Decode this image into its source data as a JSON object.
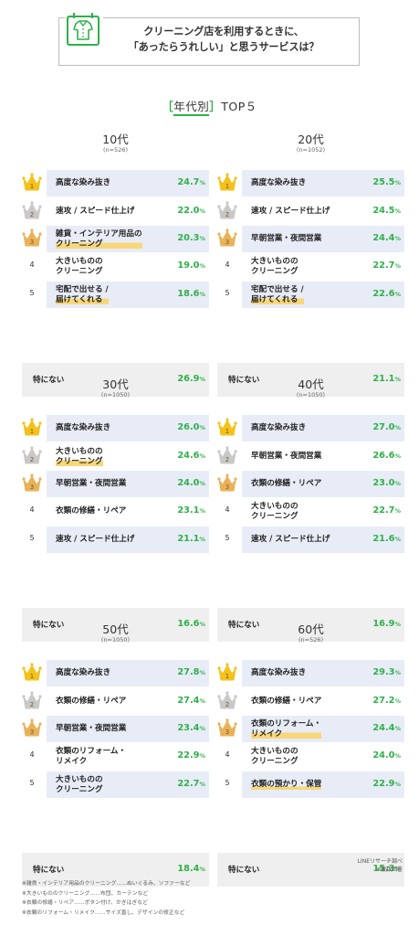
{
  "header": {
    "title_line1": "クリーニング店を利用するときに、",
    "title_line2": "「あったらうれしい」と思うサービスは？",
    "icon": "shirt-icon"
  },
  "section": {
    "bracket_open": "［",
    "label": "年代別",
    "bracket_close": "］",
    "suffix": "TOP５"
  },
  "colors": {
    "accent": "#2fb14a",
    "highlight_row": "#e8ecf7",
    "none_row": "#efefef",
    "gold": "#f4c21b",
    "silver": "#c8c8c8",
    "bronze": "#e9b25a",
    "underline": "#f7d77a"
  },
  "chart_data": [
    {
      "type": "table",
      "age": "10代",
      "n": "(n=526)",
      "rows": [
        {
          "rank": "1",
          "label": "高度な染み抜き",
          "value": 24.7
        },
        {
          "rank": "2",
          "label": "速攻 / スピード仕上げ",
          "value": 22.0
        },
        {
          "rank": "3",
          "label": "雑貨・インテリア用品の\nクリーニング",
          "value": 20.3,
          "note": true
        },
        {
          "rank": "4",
          "label": "大きいものの\nクリーニング",
          "value": 19.0
        },
        {
          "rank": "5",
          "label": "宅配で出せる /\n届けてくれる",
          "value": 18.6,
          "note": true
        }
      ],
      "none": {
        "label": "特にない",
        "value": 26.9
      }
    },
    {
      "type": "table",
      "age": "20代",
      "n": "(n=1052)",
      "rows": [
        {
          "rank": "1",
          "label": "高度な染み抜き",
          "value": 25.5
        },
        {
          "rank": "2",
          "label": "速攻 / スピード仕上げ",
          "value": 24.5
        },
        {
          "rank": "3",
          "label": "早朝営業・夜間営業",
          "value": 24.4
        },
        {
          "rank": "4",
          "label": "大きいものの\nクリーニング",
          "value": 22.7
        },
        {
          "rank": "5",
          "label": "宅配で出せる /\n届けてくれる",
          "value": 22.6,
          "note": true
        }
      ],
      "none": {
        "label": "特にない",
        "value": 21.1
      }
    },
    {
      "type": "table",
      "age": "30代",
      "n": "(n=1050)",
      "rows": [
        {
          "rank": "1",
          "label": "高度な染み抜き",
          "value": 26.0
        },
        {
          "rank": "2",
          "label": "大きいものの\nクリーニング",
          "value": 24.6,
          "note": true
        },
        {
          "rank": "3",
          "label": "早朝営業・夜間営業",
          "value": 24.0
        },
        {
          "rank": "4",
          "label": "衣類の修繕・リペア",
          "value": 23.1
        },
        {
          "rank": "5",
          "label": "速攻 / スピード仕上げ",
          "value": 21.1
        }
      ],
      "none": {
        "label": "特にない",
        "value": 16.6
      }
    },
    {
      "type": "table",
      "age": "40代",
      "n": "(n=1050)",
      "rows": [
        {
          "rank": "1",
          "label": "高度な染み抜き",
          "value": 27.0
        },
        {
          "rank": "2",
          "label": "早朝営業・夜間営業",
          "value": 26.6
        },
        {
          "rank": "3",
          "label": "衣類の修繕・リペア",
          "value": 23.0
        },
        {
          "rank": "4",
          "label": "大きいものの\nクリーニング",
          "value": 22.7
        },
        {
          "rank": "5",
          "label": "速攻 / スピード仕上げ",
          "value": 21.6
        }
      ],
      "none": {
        "label": "特にない",
        "value": 16.9
      }
    },
    {
      "type": "table",
      "age": "50代",
      "n": "(n=1050)",
      "rows": [
        {
          "rank": "1",
          "label": "高度な染み抜き",
          "value": 27.8
        },
        {
          "rank": "2",
          "label": "衣類の修繕・リペア",
          "value": 27.4
        },
        {
          "rank": "3",
          "label": "早朝営業・夜間営業",
          "value": 23.4
        },
        {
          "rank": "4",
          "label": "衣類のリフォーム・\nリメイク",
          "value": 22.9
        },
        {
          "rank": "5",
          "label": "大きいものの\nクリーニング",
          "value": 22.7
        }
      ],
      "none": {
        "label": "特にない",
        "value": 18.4
      }
    },
    {
      "type": "table",
      "age": "60代",
      "n": "(n=526)",
      "rows": [
        {
          "rank": "1",
          "label": "高度な染み抜き",
          "value": 29.3
        },
        {
          "rank": "2",
          "label": "衣類の修繕・リペア",
          "value": 27.2
        },
        {
          "rank": "3",
          "label": "衣類のリフォーム・\nリメイク",
          "value": 24.4,
          "note": true
        },
        {
          "rank": "4",
          "label": "大きいものの\nクリーニング",
          "value": 24.0
        },
        {
          "rank": "5",
          "label": "衣類の預かり・保管",
          "value": 22.9,
          "note": true
        }
      ],
      "none": {
        "label": "特にない",
        "value": 15.3
      }
    }
  ],
  "percent_unit": "%",
  "source": {
    "line1": "LINEリサーチ調べ",
    "line2": "※複数回答"
  },
  "notes": [
    "※雑貨・インテリア用品のクリーニング……ぬいぐるみ、ソファーなど",
    "※大きいもののクリーニング……布団、カーテンなど",
    "※衣類の修繕・リペア……ボタン付け、かぎはぎなど",
    "※衣類のリフォーム・リメイク……サイズ直し、デザインの修正など"
  ]
}
